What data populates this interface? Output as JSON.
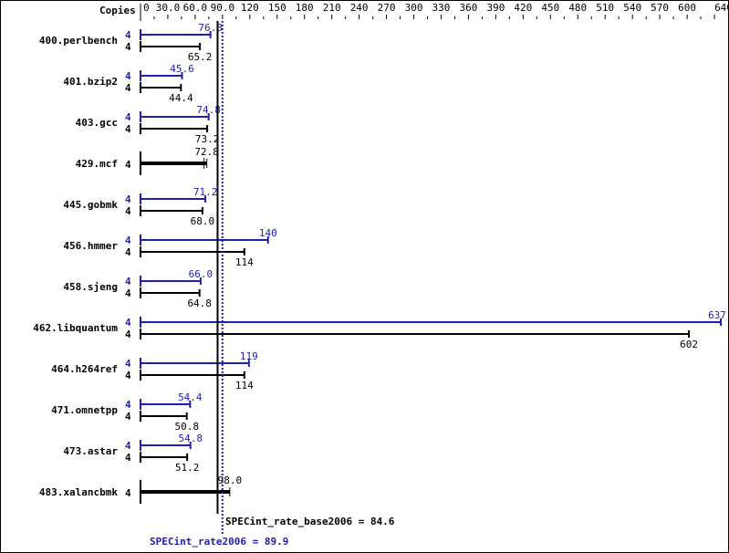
{
  "chart_data": {
    "type": "bar",
    "orientation": "horizontal",
    "axis_header": "Copies",
    "xlim": [
      0,
      640
    ],
    "ticks": [
      "0",
      "30.0",
      "60.0",
      "90.0",
      "120",
      "150",
      "180",
      "210",
      "240",
      "270",
      "300",
      "330",
      "360",
      "390",
      "420",
      "450",
      "480",
      "510",
      "540",
      "570",
      "600",
      "640"
    ],
    "tick_values": [
      0,
      30,
      60,
      90,
      120,
      150,
      180,
      210,
      240,
      270,
      300,
      330,
      360,
      390,
      420,
      450,
      480,
      510,
      540,
      570,
      600,
      640
    ],
    "colors": {
      "peak": "#2020b0",
      "base": "#000000"
    },
    "benchmarks": [
      {
        "name": "400.perlbench",
        "peak_copies": "4",
        "peak": 76.8,
        "peak_label": "76.8",
        "base_copies": "4",
        "base": 65.2,
        "base_label": "65.2"
      },
      {
        "name": "401.bzip2",
        "peak_copies": "4",
        "peak": 45.6,
        "peak_label": "45.6",
        "base_copies": "4",
        "base": 44.4,
        "base_label": "44.4"
      },
      {
        "name": "403.gcc",
        "peak_copies": "4",
        "peak": 74.8,
        "peak_label": "74.8",
        "base_copies": "4",
        "base": 73.2,
        "base_label": "73.2"
      },
      {
        "name": "429.mcf",
        "base_only": true,
        "base_copies": "4",
        "base": 72.8,
        "base_label": "72.8"
      },
      {
        "name": "445.gobmk",
        "peak_copies": "4",
        "peak": 71.2,
        "peak_label": "71.2",
        "base_copies": "4",
        "base": 68.0,
        "base_label": "68.0"
      },
      {
        "name": "456.hmmer",
        "peak_copies": "4",
        "peak": 140,
        "peak_label": "140",
        "base_copies": "4",
        "base": 114,
        "base_label": "114"
      },
      {
        "name": "458.sjeng",
        "peak_copies": "4",
        "peak": 66.0,
        "peak_label": "66.0",
        "base_copies": "4",
        "base": 64.8,
        "base_label": "64.8"
      },
      {
        "name": "462.libquantum",
        "peak_copies": "4",
        "peak": 637,
        "peak_label": "637",
        "base_copies": "4",
        "base": 602,
        "base_label": "602"
      },
      {
        "name": "464.h264ref",
        "peak_copies": "4",
        "peak": 119,
        "peak_label": "119",
        "base_copies": "4",
        "base": 114,
        "base_label": "114"
      },
      {
        "name": "471.omnetpp",
        "peak_copies": "4",
        "peak": 54.4,
        "peak_label": "54.4",
        "base_copies": "4",
        "base": 50.8,
        "base_label": "50.8"
      },
      {
        "name": "473.astar",
        "peak_copies": "4",
        "peak": 54.8,
        "peak_label": "54.8",
        "base_copies": "4",
        "base": 51.2,
        "base_label": "51.2"
      },
      {
        "name": "483.xalancbmk",
        "base_only": true,
        "base_copies": "4",
        "base": 98.0,
        "base_label": "98.0"
      }
    ],
    "summary": {
      "base_label": "SPECint_rate_base2006 = 84.6",
      "base_value": 84.6,
      "peak_label": "SPECint_rate2006 = 89.9",
      "peak_value": 89.9
    }
  }
}
